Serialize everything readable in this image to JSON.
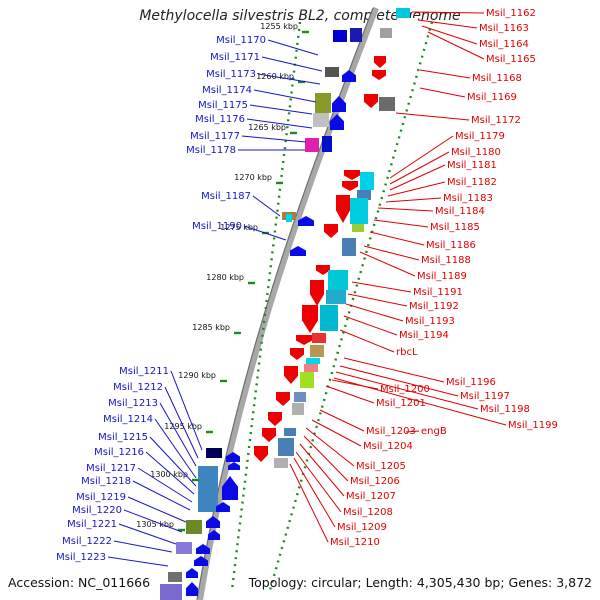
{
  "title": "Methylocella silvestris BL2, complete genome",
  "accession": "Accession: NC_011666",
  "topology": "Topology: circular; Length: 4,305,430 bp; Genes: 3,872",
  "colors": {
    "left_labels": "#1515c8",
    "right_labels": "#e00000",
    "backbone": "#9a9a9a",
    "tick": "#1d8a1d",
    "forward_arrow": "#0a0ae6",
    "reverse_arrow": "#ee0000"
  },
  "scale_labels": [
    "1255 kbp",
    "1260 kbp",
    "1265 kbp",
    "1270 kbp",
    "1275 kbp",
    "1280 kbp",
    "1285 kbp",
    "1290 kbp",
    "1295 kbp",
    "1300 kbp",
    "1305 kbp"
  ],
  "left_genes": [
    "Msil_1170",
    "Msil_1171",
    "Msil_1173",
    "Msil_1174",
    "Msil_1175",
    "Msil_1176",
    "Msil_1177",
    "Msil_1178",
    "Msil_1187",
    "Msil_1190",
    "Msil_1211",
    "Msil_1212",
    "Msil_1213",
    "Msil_1214",
    "Msil_1215",
    "Msil_1216",
    "Msil_1217",
    "Msil_1218",
    "Msil_1219",
    "Msil_1220",
    "Msil_1221",
    "Msil_1222",
    "Msil_1223"
  ],
  "right_genes": [
    "Msil_1162",
    "Msil_1163",
    "Msil_1164",
    "Msil_1165",
    "Msil_1168",
    "Msil_1169",
    "Msil_1172",
    "Msil_1179",
    "Msil_1180",
    "Msil_1181",
    "Msil_1182",
    "Msil_1183",
    "Msil_1184",
    "Msil_1185",
    "Msil_1186",
    "Msil_1188",
    "Msil_1189",
    "Msil_1191",
    "Msil_1192",
    "Msil_1193",
    "Msil_1194",
    "rbcL",
    "Msil_1196",
    "Msil_1197",
    "Msil_1198",
    "Msil_1199",
    "Msil_1200",
    "Msil_1201",
    "Msil_1203",
    "engB",
    "Msil_1204",
    "Msil_1205",
    "Msil_1206",
    "Msil_1207",
    "Msil_1208",
    "Msil_1209",
    "Msil_1210"
  ]
}
